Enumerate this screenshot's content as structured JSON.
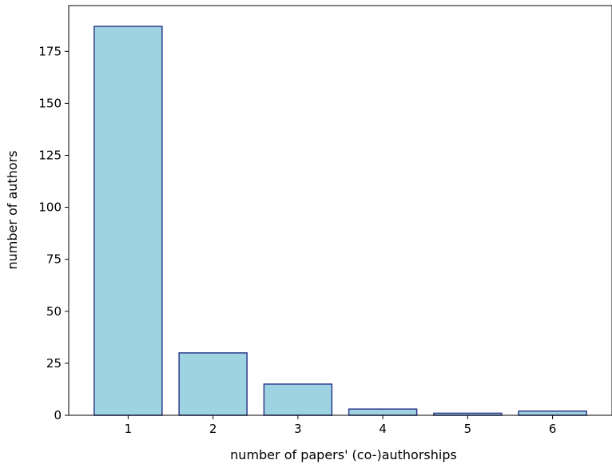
{
  "chart_data": {
    "type": "bar",
    "categories": [
      "1",
      "2",
      "3",
      "4",
      "5",
      "6"
    ],
    "x": [
      1,
      2,
      3,
      4,
      5,
      6
    ],
    "values": [
      187,
      30,
      15,
      3,
      1,
      2
    ],
    "xlabel": "number of papers' (co-)authorships",
    "ylabel": "number of authors",
    "ylim": [
      0,
      197
    ],
    "xlim": [
      0.3,
      6.7
    ],
    "yticks": [
      0,
      25,
      50,
      75,
      100,
      125,
      150,
      175
    ],
    "ytick_labels": [
      "0",
      "25",
      "50",
      "75",
      "100",
      "125",
      "150",
      "175"
    ],
    "xtick_labels": [
      "1",
      "2",
      "3",
      "4",
      "5",
      "6"
    ],
    "grid": false,
    "legend": "none",
    "colors": {
      "bar_fill": "#9ed3e2",
      "bar_edge": "#2e3a8c",
      "axes": "#000000"
    }
  }
}
